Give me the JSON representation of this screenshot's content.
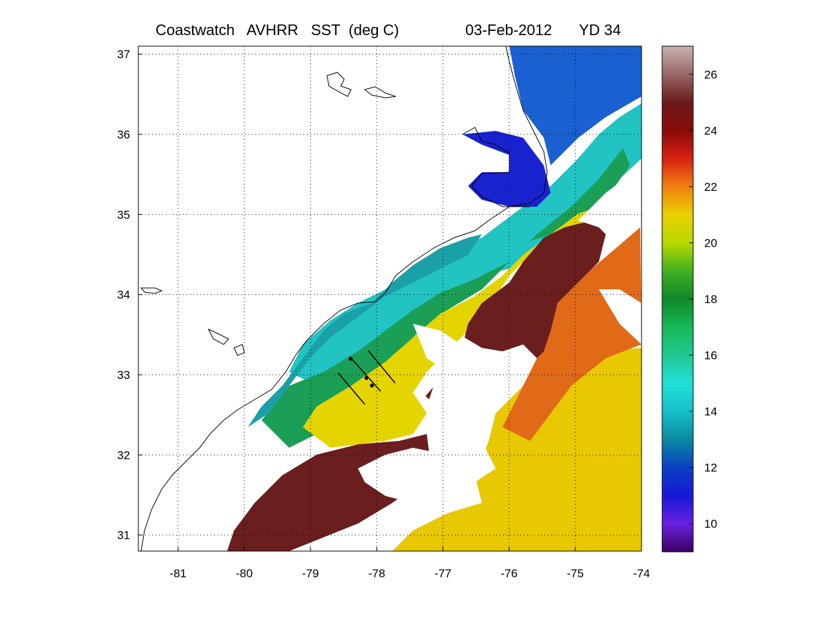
{
  "title": {
    "product": "Coastwatch   AVHRR   SST  (deg C)",
    "date": "03-Feb-2012",
    "yearday": "YD 34"
  },
  "map": {
    "lon_range": [
      -81.6,
      -74
    ],
    "lat_range": [
      30.8,
      37.1
    ],
    "x_ticks": [
      -81,
      -80,
      -79,
      -78,
      -77,
      -76,
      -75,
      -74
    ],
    "y_ticks": [
      31,
      32,
      33,
      34,
      35,
      36,
      37
    ],
    "grid": "dotted",
    "colors": {
      "land": "#ffffff",
      "coast": "#000000",
      "cold_inshore": "#1aa0a8",
      "shelf": "#22c3c3",
      "mid_shelf": "#1b9e56",
      "slope": "#e4d400",
      "gulf_stream": "#6a1e1e",
      "offshore": "#e8c800",
      "sound": "#1a22d0"
    },
    "transect_lines": 3
  },
  "colorbar": {
    "range": [
      9,
      27
    ],
    "ticks": [
      10,
      12,
      14,
      16,
      18,
      20,
      22,
      24,
      26
    ],
    "stops": [
      {
        "v": 9,
        "c": "#3a0060"
      },
      {
        "v": 10,
        "c": "#6a20e0"
      },
      {
        "v": 11,
        "c": "#1818d8"
      },
      {
        "v": 12,
        "c": "#0a40c0"
      },
      {
        "v": 13,
        "c": "#0a8aa0"
      },
      {
        "v": 14,
        "c": "#15c0c8"
      },
      {
        "v": 15,
        "c": "#20e0d8"
      },
      {
        "v": 16,
        "c": "#20c890"
      },
      {
        "v": 17,
        "c": "#18b858"
      },
      {
        "v": 18,
        "c": "#10882a"
      },
      {
        "v": 19,
        "c": "#40b020"
      },
      {
        "v": 20,
        "c": "#b8d800"
      },
      {
        "v": 21,
        "c": "#e8d000"
      },
      {
        "v": 22,
        "c": "#f08010"
      },
      {
        "v": 23,
        "c": "#d82010"
      },
      {
        "v": 24,
        "c": "#8a0a0a"
      },
      {
        "v": 25,
        "c": "#6a1a1a"
      },
      {
        "v": 26,
        "c": "#9a6868"
      },
      {
        "v": 27,
        "c": "#c8b0b0"
      }
    ]
  }
}
